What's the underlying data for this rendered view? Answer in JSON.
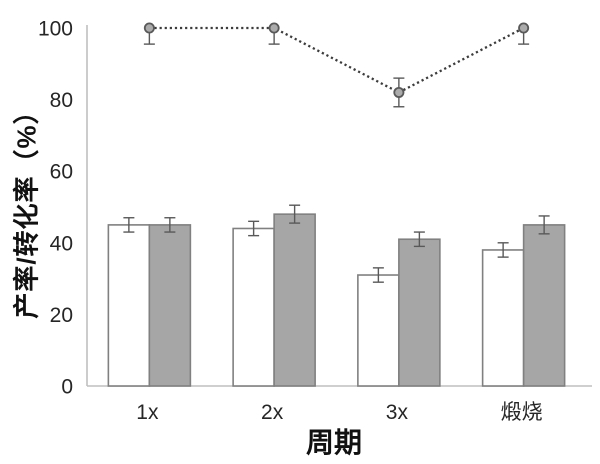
{
  "figure": {
    "background": "#ffffff"
  },
  "chart_data": {
    "type": "bar",
    "title": "",
    "xlabel": "周期",
    "ylabel": "产率/转化率（%）",
    "categories": [
      "1x",
      "2x",
      "3x",
      "煅烧"
    ],
    "series": [
      {
        "name": "white-bars",
        "type": "bar",
        "values": [
          45,
          44,
          31,
          38
        ],
        "errors": [
          2,
          2,
          2,
          2
        ],
        "fill": "#ffffff",
        "stroke": "#808080"
      },
      {
        "name": "gray-bars",
        "type": "bar",
        "values": [
          45,
          48,
          41,
          45
        ],
        "errors": [
          2,
          2.5,
          2,
          2.5
        ],
        "fill": "#a6a6a6",
        "stroke": "#808080"
      },
      {
        "name": "dotted-line",
        "type": "line",
        "values": [
          100,
          100,
          82,
          100
        ],
        "errors": [
          4.5,
          4.5,
          4,
          4.5
        ],
        "stroke": "#3c3c3c",
        "marker_fill": "#ababab",
        "marker_stroke": "#595959"
      }
    ],
    "ylim": [
      0,
      100
    ],
    "yticks": [
      0,
      20,
      40,
      60,
      80,
      100
    ],
    "grid": false,
    "legend": "none",
    "error_color": "#595959",
    "axis_color": "#bfbfbf",
    "tick_label_color": "#262626"
  }
}
